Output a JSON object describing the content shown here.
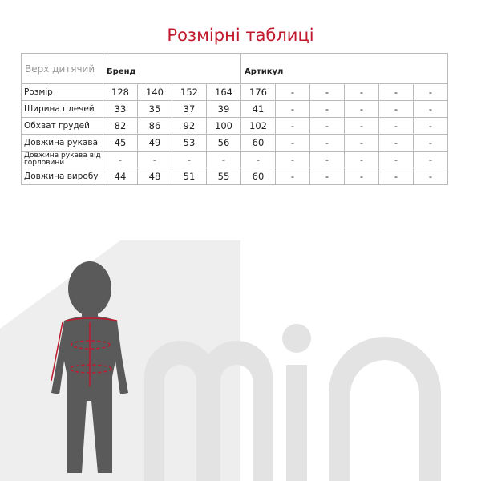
{
  "title": "Розмірні таблиці",
  "table": {
    "corner": "Верх дитячий",
    "brand_label": "Бренд",
    "article_label": "Артикул",
    "rows": [
      {
        "label": "Розмір",
        "values": [
          "128",
          "140",
          "152",
          "164",
          "176",
          "-",
          "-",
          "-",
          "-",
          "-"
        ]
      },
      {
        "label": "Ширина плечей",
        "values": [
          "33",
          "35",
          "37",
          "39",
          "41",
          "-",
          "-",
          "-",
          "-",
          "-"
        ]
      },
      {
        "label": "Обхват грудей",
        "values": [
          "82",
          "86",
          "92",
          "100",
          "102",
          "-",
          "-",
          "-",
          "-",
          "-"
        ]
      },
      {
        "label": "Довжина рукава",
        "values": [
          "45",
          "49",
          "53",
          "56",
          "60",
          "-",
          "-",
          "-",
          "-",
          "-"
        ]
      },
      {
        "label": "Довжина рукава від горловини",
        "values": [
          "-",
          "-",
          "-",
          "-",
          "-",
          "-",
          "-",
          "-",
          "-",
          "-"
        ]
      },
      {
        "label": "Довжина виробу",
        "values": [
          "44",
          "48",
          "51",
          "55",
          "60",
          "-",
          "-",
          "-",
          "-",
          "-"
        ]
      }
    ]
  },
  "logo_text": "min",
  "colors": {
    "accent": "#c0192c",
    "silhouette": "#5a5a5a",
    "logo": "#e6e6e6"
  }
}
